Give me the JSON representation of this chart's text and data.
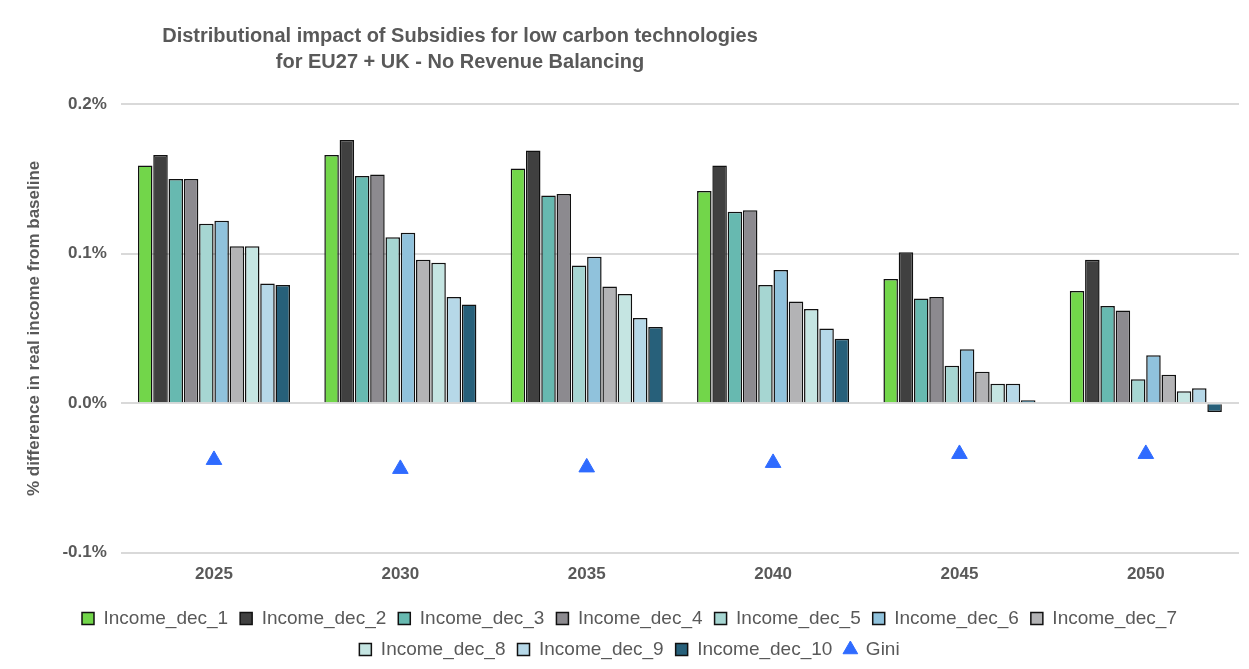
{
  "chart_data": {
    "type": "bar",
    "title": "Distributional impact of Subsidies for low carbon technologies for EU27 + UK - No Revenue Balancing",
    "ylabel": "% difference in real income from baseline",
    "categories": [
      "2025",
      "2030",
      "2035",
      "2040",
      "2045",
      "2050"
    ],
    "ylim": [
      -0.1,
      0.2
    ],
    "yticks": [
      {
        "value": -0.1,
        "label": "-0.1%"
      },
      {
        "value": 0,
        "label": "0.0%"
      },
      {
        "value": 0.1,
        "label": "0.1%"
      },
      {
        "value": 0.2,
        "label": "0.2%"
      }
    ],
    "grid": "y",
    "legend": "bottom",
    "marker": "triangle",
    "series": [
      {
        "name": "Income_dec_1",
        "color": "#72d64a",
        "values": [
          0.159,
          0.166,
          0.157,
          0.142,
          0.083,
          0.075
        ]
      },
      {
        "name": "Income_dec_2",
        "color": "#404040",
        "values": [
          0.166,
          0.176,
          0.169,
          0.159,
          0.101,
          0.096
        ]
      },
      {
        "name": "Income_dec_3",
        "color": "#67b9b0",
        "values": [
          0.15,
          0.152,
          0.139,
          0.128,
          0.07,
          0.065
        ]
      },
      {
        "name": "Income_dec_4",
        "color": "#8c8a8f",
        "values": [
          0.15,
          0.153,
          0.14,
          0.129,
          0.071,
          0.062
        ]
      },
      {
        "name": "Income_dec_5",
        "color": "#a6d6d2",
        "values": [
          0.12,
          0.111,
          0.092,
          0.079,
          0.025,
          0.016
        ]
      },
      {
        "name": "Income_dec_6",
        "color": "#90c2dc",
        "values": [
          0.122,
          0.114,
          0.098,
          0.089,
          0.036,
          0.032
        ]
      },
      {
        "name": "Income_dec_7",
        "color": "#b3b3b5",
        "values": [
          0.105,
          0.096,
          0.078,
          0.068,
          0.021,
          0.019
        ]
      },
      {
        "name": "Income_dec_8",
        "color": "#c5e5e2",
        "values": [
          0.105,
          0.094,
          0.073,
          0.063,
          0.013,
          0.008
        ]
      },
      {
        "name": "Income_dec_9",
        "color": "#b6d8e8",
        "values": [
          0.08,
          0.071,
          0.057,
          0.05,
          0.013,
          0.01
        ]
      },
      {
        "name": "Income_dec_10",
        "color": "#27607a",
        "values": [
          0.079,
          0.066,
          0.051,
          0.043,
          0.002,
          -0.006
        ]
      },
      {
        "name": "Gini",
        "type": "scatter",
        "color": "#2f6bff",
        "values": [
          -0.038,
          -0.044,
          -0.043,
          -0.04,
          -0.034,
          -0.034
        ]
      }
    ]
  }
}
